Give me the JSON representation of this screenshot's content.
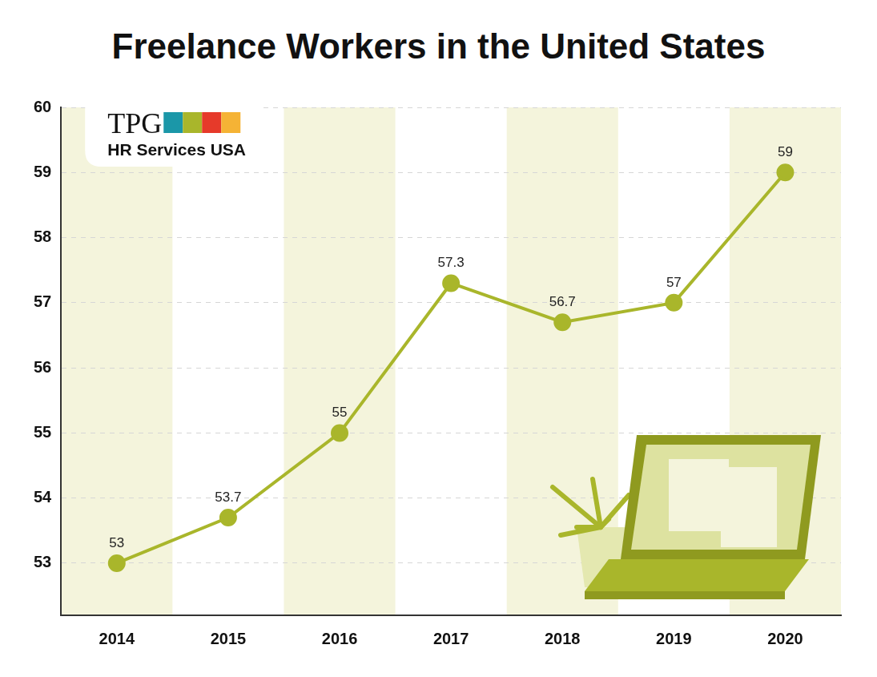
{
  "chart_data": {
    "type": "line",
    "title": "Freelance Workers in the United States",
    "annotations": [
      "TPG",
      "HR Services USA"
    ],
    "categories": [
      "2014",
      "2015",
      "2016",
      "2017",
      "2018",
      "2019",
      "2020"
    ],
    "values": [
      53,
      53.7,
      55,
      57.3,
      56.7,
      57,
      59
    ],
    "color": "#a9b62b",
    "marker": "circle",
    "ylim": [
      52.2,
      60
    ],
    "yticks": [
      53,
      54,
      55,
      56,
      57,
      58,
      59,
      60
    ],
    "grid": true,
    "data_labels": true
  }
}
